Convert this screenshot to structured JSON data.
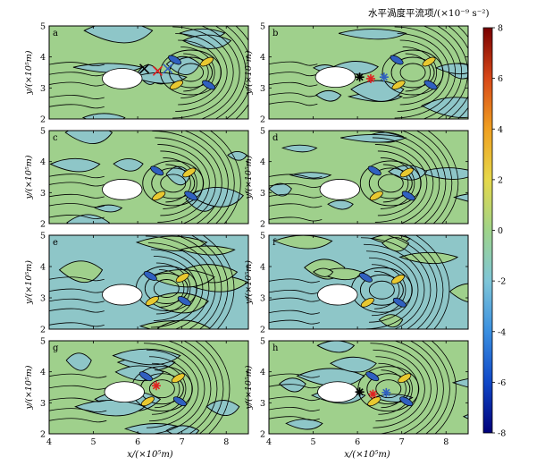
{
  "chart_data": {
    "type": "heatmap",
    "colorbar": {
      "title": "水平渦度平流项/(×10⁻⁹ s⁻²)",
      "ticks": [
        8,
        6,
        4,
        2,
        0,
        -2,
        -4,
        -6,
        -8
      ],
      "range": [
        -8,
        8
      ],
      "stops": [
        "#00007a",
        "#1048c8",
        "#3a8fe0",
        "#7fc6d8",
        "#9fd48a",
        "#e6d84a",
        "#f0a020",
        "#d84818",
        "#780000"
      ]
    },
    "axes": {
      "xlabel": "x/(×10⁵m)",
      "ylabel": "y/(×10⁵m)",
      "xlim": [
        4,
        8.5
      ],
      "ylim": [
        2,
        5
      ],
      "xticks": [
        "4",
        "5",
        "6",
        "7",
        "8"
      ],
      "yticks": [
        "2",
        "3",
        "4",
        "5"
      ]
    },
    "panels": [
      {
        "label": "a",
        "background": "#9fd08c",
        "obstacle": {
          "x": 5.65,
          "y": 3.3,
          "rx": 0.45,
          "ry": 0.33
        },
        "markers": [
          {
            "symbol": "x",
            "color": "#000000",
            "x": 6.15,
            "y": 3.62
          },
          {
            "symbol": "x",
            "color": "#e02020",
            "x": 6.45,
            "y": 3.55
          },
          {
            "symbol": "x",
            "color": "#3060c0",
            "x": 6.68,
            "y": 3.62
          }
        ],
        "vortex": {
          "x": 7.2,
          "y": 3.5
        }
      },
      {
        "label": "b",
        "background": "#9fd08c",
        "obstacle": {
          "x": 5.5,
          "y": 3.35,
          "rx": 0.45,
          "ry": 0.33
        },
        "markers": [
          {
            "symbol": "*",
            "color": "#000000",
            "x": 6.05,
            "y": 3.35
          },
          {
            "symbol": "*",
            "color": "#e02020",
            "x": 6.3,
            "y": 3.3
          },
          {
            "symbol": "*",
            "color": "#3060c0",
            "x": 6.6,
            "y": 3.35
          }
        ],
        "vortex": {
          "x": 7.25,
          "y": 3.5
        }
      },
      {
        "label": "c",
        "background": "#9fd08c",
        "obstacle": {
          "x": 5.65,
          "y": 3.1,
          "rx": 0.45,
          "ry": 0.33
        },
        "markers": [],
        "vortex": {
          "x": 6.8,
          "y": 3.3
        }
      },
      {
        "label": "d",
        "background": "#9fd08c",
        "obstacle": {
          "x": 5.6,
          "y": 3.1,
          "rx": 0.45,
          "ry": 0.33
        },
        "markers": [],
        "vortex": {
          "x": 6.75,
          "y": 3.3
        }
      },
      {
        "label": "e",
        "background": "#8ec6c8",
        "obstacle": {
          "x": 5.65,
          "y": 3.1,
          "rx": 0.45,
          "ry": 0.33
        },
        "markers": [],
        "vortex": {
          "x": 6.65,
          "y": 3.3
        }
      },
      {
        "label": "f",
        "background": "#8ec6c8",
        "obstacle": {
          "x": 5.55,
          "y": 3.1,
          "rx": 0.45,
          "ry": 0.33
        },
        "markers": [],
        "vortex": {
          "x": 6.55,
          "y": 3.25
        }
      },
      {
        "label": "g",
        "background": "#9fd08c",
        "obstacle": {
          "x": 5.7,
          "y": 3.35,
          "rx": 0.45,
          "ry": 0.33
        },
        "markers": [
          {
            "symbol": "*",
            "color": "#e02020",
            "x": 6.42,
            "y": 3.55
          }
        ],
        "vortex": {
          "x": 6.55,
          "y": 3.45
        }
      },
      {
        "label": "h",
        "background": "#9fd08c",
        "obstacle": {
          "x": 5.55,
          "y": 3.35,
          "rx": 0.45,
          "ry": 0.33
        },
        "markers": [
          {
            "symbol": "*",
            "color": "#000000",
            "x": 6.05,
            "y": 3.35
          },
          {
            "symbol": "*",
            "color": "#e02020",
            "x": 6.35,
            "y": 3.28
          },
          {
            "symbol": "*",
            "color": "#3060c0",
            "x": 6.65,
            "y": 3.33
          }
        ],
        "vortex": {
          "x": 6.7,
          "y": 3.45
        }
      }
    ]
  }
}
